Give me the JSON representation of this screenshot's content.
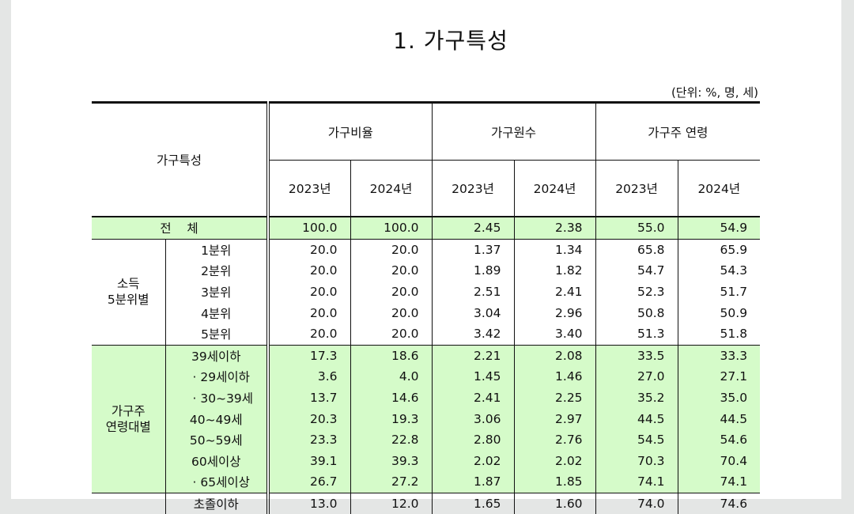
{
  "title": "1. 가구특성",
  "unit": "(단위: %, 명, 세)",
  "header": {
    "row_label": "가구특성",
    "groups": [
      "가구비율",
      "가구원수",
      "가구주 연령"
    ],
    "years": [
      "2023년",
      "2024년",
      "2023년",
      "2024년",
      "2023년",
      "2024년"
    ]
  },
  "total": {
    "label": "전    체",
    "values": [
      "100.0",
      "100.0",
      "2.45",
      "2.38",
      "55.0",
      "54.9"
    ]
  },
  "income": {
    "label_line1": "소득",
    "label_line2": "5분위별",
    "rows": [
      {
        "label": "1분위",
        "values": [
          "20.0",
          "20.0",
          "1.37",
          "1.34",
          "65.8",
          "65.9"
        ]
      },
      {
        "label": "2분위",
        "values": [
          "20.0",
          "20.0",
          "1.89",
          "1.82",
          "54.7",
          "54.3"
        ]
      },
      {
        "label": "3분위",
        "values": [
          "20.0",
          "20.0",
          "2.51",
          "2.41",
          "52.3",
          "51.7"
        ]
      },
      {
        "label": "4분위",
        "values": [
          "20.0",
          "20.0",
          "3.04",
          "2.96",
          "50.8",
          "50.9"
        ]
      },
      {
        "label": "5분위",
        "values": [
          "20.0",
          "20.0",
          "3.42",
          "3.40",
          "51.3",
          "51.8"
        ]
      }
    ]
  },
  "age": {
    "label_line1": "가구주",
    "label_line2": "연령대별",
    "rows": [
      {
        "label": "39세이하",
        "values": [
          "17.3",
          "18.6",
          "2.21",
          "2.08",
          "33.5",
          "33.3"
        ]
      },
      {
        "label": "· 29세이하",
        "values": [
          "3.6",
          "4.0",
          "1.45",
          "1.46",
          "27.0",
          "27.1"
        ]
      },
      {
        "label": "· 30~39세",
        "values": [
          "13.7",
          "14.6",
          "2.41",
          "2.25",
          "35.2",
          "35.0"
        ]
      },
      {
        "label": "40~49세",
        "values": [
          "20.3",
          "19.3",
          "3.06",
          "2.97",
          "44.5",
          "44.5"
        ]
      },
      {
        "label": "50~59세",
        "values": [
          "23.3",
          "22.8",
          "2.80",
          "2.76",
          "54.5",
          "54.6"
        ]
      },
      {
        "label": "60세이상",
        "values": [
          "39.1",
          "39.3",
          "2.02",
          "2.02",
          "70.3",
          "70.4"
        ]
      },
      {
        "label": "· 65세이상",
        "values": [
          "26.7",
          "27.2",
          "1.87",
          "1.85",
          "74.1",
          "74.1"
        ]
      }
    ]
  },
  "next_row": {
    "label": "초졸이하",
    "values": [
      "13.0",
      "12.0",
      "1.65",
      "1.60",
      "74.0",
      "74.6"
    ]
  }
}
